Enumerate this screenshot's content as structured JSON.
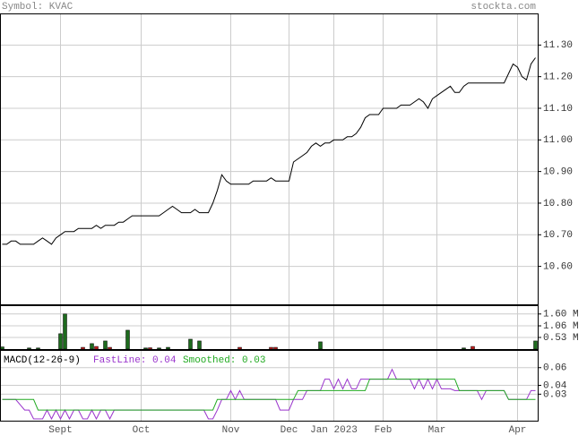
{
  "header": {
    "symbol": "Symbol: KVAC",
    "site": "stockta.com"
  },
  "chart_data": [
    {
      "type": "line",
      "categories": [
        null,
        null,
        null,
        null,
        null,
        null,
        null,
        null,
        null,
        null,
        null,
        null,
        null,
        "Sept",
        null,
        null,
        null,
        null,
        null,
        null,
        null,
        null,
        null,
        null,
        null,
        null,
        null,
        null,
        null,
        null,
        null,
        "Oct",
        null,
        null,
        null,
        null,
        null,
        null,
        null,
        null,
        null,
        null,
        null,
        null,
        null,
        null,
        null,
        null,
        null,
        null,
        null,
        "Nov",
        null,
        null,
        null,
        null,
        null,
        null,
        null,
        null,
        null,
        null,
        null,
        null,
        "Dec",
        null,
        null,
        null,
        null,
        null,
        null,
        null,
        null,
        null,
        "Jan 2023",
        null,
        null,
        null,
        null,
        null,
        null,
        null,
        null,
        null,
        null,
        "Feb",
        null,
        null,
        null,
        null,
        null,
        null,
        null,
        null,
        null,
        null,
        null,
        "Mar",
        null,
        null,
        null,
        null,
        null,
        null,
        null,
        null,
        null,
        null,
        null,
        null,
        null,
        null,
        null,
        null,
        null,
        "Apr",
        null,
        null,
        null,
        null
      ],
      "series": [
        {
          "color": "#000000",
          "values": [
            10.67,
            10.67,
            10.68,
            10.68,
            10.67,
            10.67,
            10.67,
            10.67,
            10.68,
            10.69,
            10.68,
            10.67,
            10.69,
            10.7,
            10.71,
            10.71,
            10.71,
            10.72,
            10.72,
            10.72,
            10.72,
            10.73,
            10.72,
            10.73,
            10.73,
            10.73,
            10.74,
            10.74,
            10.75,
            10.76,
            10.76,
            10.76,
            10.76,
            10.76,
            10.76,
            10.76,
            10.77,
            10.78,
            10.79,
            10.78,
            10.77,
            10.77,
            10.77,
            10.78,
            10.77,
            10.77,
            10.77,
            10.8,
            10.84,
            10.89,
            10.87,
            10.86,
            10.86,
            10.86,
            10.86,
            10.86,
            10.87,
            10.87,
            10.87,
            10.87,
            10.88,
            10.87,
            10.87,
            10.87,
            10.87,
            10.93,
            10.94,
            10.95,
            10.96,
            10.98,
            10.99,
            10.98,
            10.99,
            10.99,
            11.0,
            11.0,
            11.0,
            11.01,
            11.01,
            11.02,
            11.04,
            11.07,
            11.08,
            11.08,
            11.08,
            11.1,
            11.1,
            11.1,
            11.1,
            11.11,
            11.11,
            11.11,
            11.12,
            11.13,
            11.12,
            11.1,
            11.13,
            11.14,
            11.15,
            11.16,
            11.17,
            11.15,
            11.15,
            11.17,
            11.18,
            11.18,
            11.18,
            11.18,
            11.18,
            11.18,
            11.18,
            11.18,
            11.18,
            11.21,
            11.24,
            11.23,
            11.2,
            11.19,
            11.24,
            11.26
          ]
        }
      ],
      "ylim": [
        10.48,
        11.4
      ],
      "yticks": [
        {
          "value": 11.3,
          "label": "11.30"
        },
        {
          "value": 11.2,
          "label": "11.20"
        },
        {
          "value": 11.1,
          "label": "11.10"
        },
        {
          "value": 11.0,
          "label": "11.00"
        },
        {
          "value": 10.9,
          "label": "10.90"
        },
        {
          "value": 10.8,
          "label": "10.80"
        },
        {
          "value": 10.7,
          "label": "10.70"
        },
        {
          "value": 10.6,
          "label": "10.60"
        }
      ],
      "grid": true
    },
    {
      "type": "bar",
      "series": [
        {
          "color": "#1e6b1e",
          "values": [
            0.1,
            null,
            null,
            null,
            null,
            null,
            0.05,
            null,
            0.05,
            null,
            null,
            null,
            null,
            0.7,
            1.6,
            null,
            null,
            null,
            null,
            null,
            0.25,
            null,
            null,
            0.37,
            null,
            null,
            null,
            null,
            0.86,
            null,
            null,
            null,
            0.05,
            null,
            null,
            0.05,
            null,
            0.08,
            null,
            null,
            null,
            null,
            0.45,
            null,
            0.37,
            null,
            null,
            null,
            null,
            null,
            null,
            null,
            null,
            null,
            null,
            null,
            null,
            null,
            null,
            null,
            null,
            null,
            null,
            null,
            null,
            null,
            null,
            null,
            null,
            null,
            null,
            0.33,
            null,
            null,
            null,
            null,
            null,
            null,
            null,
            null,
            null,
            null,
            null,
            null,
            null,
            null,
            null,
            null,
            null,
            null,
            null,
            null,
            null,
            null,
            null,
            null,
            null,
            null,
            null,
            null,
            null,
            null,
            null,
            0.05,
            null,
            null,
            null,
            null,
            null,
            null,
            null,
            null,
            null,
            null,
            null,
            null,
            null,
            null,
            null,
            0.37
          ]
        },
        {
          "color": "#cc2222",
          "values": [
            null,
            null,
            null,
            null,
            null,
            null,
            null,
            null,
            null,
            null,
            null,
            null,
            null,
            null,
            null,
            null,
            null,
            null,
            0.08,
            null,
            null,
            0.12,
            null,
            null,
            0.08,
            null,
            null,
            null,
            null,
            null,
            null,
            null,
            null,
            0.06,
            null,
            null,
            null,
            null,
            null,
            null,
            null,
            null,
            null,
            null,
            null,
            null,
            null,
            null,
            null,
            null,
            null,
            null,
            null,
            0.08,
            null,
            null,
            null,
            null,
            null,
            null,
            0.08,
            0.08,
            null,
            null,
            null,
            null,
            null,
            null,
            null,
            null,
            null,
            null,
            null,
            null,
            null,
            null,
            null,
            null,
            null,
            null,
            null,
            null,
            null,
            null,
            null,
            null,
            null,
            null,
            null,
            null,
            null,
            null,
            null,
            null,
            null,
            null,
            null,
            null,
            null,
            null,
            null,
            null,
            null,
            null,
            null,
            0.12,
            null,
            null,
            null,
            null,
            null,
            null,
            null,
            null,
            null,
            null,
            null,
            null,
            null,
            null
          ]
        }
      ],
      "ylim": [
        0,
        2.0
      ],
      "yticks": [
        {
          "value": 1.6,
          "label": "1.60 M"
        },
        {
          "value": 1.06,
          "label": "1.06 M"
        },
        {
          "value": 0.53,
          "label": "0.53 M"
        }
      ],
      "grid": true
    },
    {
      "type": "line",
      "title": "MACD(12-26-9)",
      "series": [
        {
          "name": "FastLine: 0.04",
          "color": "#9933cc",
          "values": [
            0.024,
            0.024,
            0.024,
            0.024,
            0.018,
            0.012,
            0.012,
            0.002,
            0.002,
            0.002,
            0.012,
            0.002,
            0.012,
            0.002,
            0.012,
            0.002,
            0.012,
            0.012,
            0.002,
            0.002,
            0.012,
            0.002,
            0.012,
            0.012,
            0.002,
            0.012,
            0.012,
            0.012,
            0.012,
            0.012,
            0.012,
            0.012,
            0.012,
            0.012,
            0.012,
            0.012,
            0.012,
            0.012,
            0.012,
            0.012,
            0.012,
            0.012,
            0.012,
            0.012,
            0.012,
            0.012,
            0.002,
            0.002,
            0.012,
            0.024,
            0.024,
            0.034,
            0.024,
            0.034,
            0.024,
            0.024,
            0.024,
            0.024,
            0.024,
            0.024,
            0.024,
            0.024,
            0.012,
            0.012,
            0.012,
            0.024,
            0.024,
            0.024,
            0.034,
            0.034,
            0.034,
            0.034,
            0.047,
            0.047,
            0.036,
            0.047,
            0.036,
            0.047,
            0.036,
            0.036,
            0.047,
            0.047,
            0.047,
            0.047,
            0.047,
            0.047,
            0.047,
            0.058,
            0.047,
            0.047,
            0.047,
            0.047,
            0.036,
            0.047,
            0.036,
            0.047,
            0.036,
            0.047,
            0.036,
            0.036,
            0.036,
            0.034,
            0.034,
            0.034,
            0.034,
            0.034,
            0.034,
            0.024,
            0.034,
            0.034,
            0.034,
            0.034,
            0.034,
            0.024,
            0.024,
            0.024,
            0.024,
            0.024,
            0.034,
            0.034
          ]
        },
        {
          "name": "Smoothed: 0.03",
          "color": "#22aa22",
          "values": [
            0.024,
            0.024,
            0.024,
            0.024,
            0.024,
            0.024,
            0.024,
            0.024,
            0.012,
            0.012,
            0.012,
            0.012,
            0.012,
            0.012,
            0.012,
            0.012,
            0.012,
            0.012,
            0.012,
            0.012,
            0.012,
            0.012,
            0.012,
            0.012,
            0.012,
            0.012,
            0.012,
            0.012,
            0.012,
            0.012,
            0.012,
            0.012,
            0.012,
            0.012,
            0.012,
            0.012,
            0.012,
            0.012,
            0.012,
            0.012,
            0.012,
            0.012,
            0.012,
            0.012,
            0.012,
            0.012,
            0.012,
            0.012,
            0.024,
            0.024,
            0.024,
            0.024,
            0.024,
            0.024,
            0.024,
            0.024,
            0.024,
            0.024,
            0.024,
            0.024,
            0.024,
            0.024,
            0.024,
            0.024,
            0.024,
            0.024,
            0.034,
            0.034,
            0.034,
            0.034,
            0.034,
            0.034,
            0.034,
            0.034,
            0.034,
            0.034,
            0.034,
            0.034,
            0.034,
            0.034,
            0.034,
            0.034,
            0.047,
            0.047,
            0.047,
            0.047,
            0.047,
            0.047,
            0.047,
            0.047,
            0.047,
            0.047,
            0.047,
            0.047,
            0.047,
            0.047,
            0.047,
            0.047,
            0.047,
            0.047,
            0.047,
            0.047,
            0.034,
            0.034,
            0.034,
            0.034,
            0.034,
            0.034,
            0.034,
            0.034,
            0.034,
            0.034,
            0.034,
            0.024,
            0.024,
            0.024,
            0.024,
            0.024,
            0.024,
            0.024
          ]
        }
      ],
      "ylim": [
        0,
        0.08
      ],
      "yticks": [
        0.06,
        0.04,
        0.03
      ],
      "grid": true
    }
  ]
}
